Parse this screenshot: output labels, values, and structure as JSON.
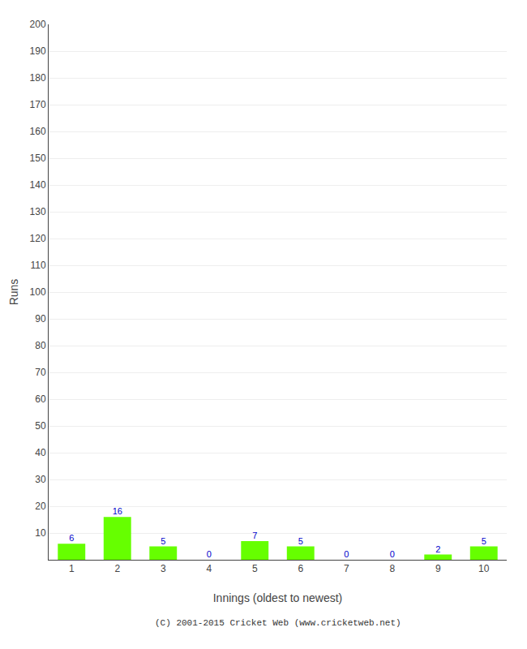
{
  "chart_data": {
    "type": "bar",
    "categories": [
      "1",
      "2",
      "3",
      "4",
      "5",
      "6",
      "7",
      "8",
      "9",
      "10"
    ],
    "values": [
      6,
      16,
      5,
      0,
      7,
      5,
      0,
      0,
      2,
      5
    ],
    "color": "#66ff00",
    "data_labels": true,
    "xlabel": "Innings (oldest to newest)",
    "ylabel": "Runs",
    "ylim": [
      0,
      200
    ],
    "yticks": [
      {
        "value": 0,
        "label": null
      },
      10,
      20,
      30,
      40,
      50,
      60,
      70,
      80,
      90,
      100,
      110,
      120,
      130,
      140,
      150,
      160,
      170,
      180,
      190,
      200
    ],
    "grid": true,
    "annotations": [
      "(C) 2001-2015 Cricket Web (www.cricketweb.net)"
    ]
  }
}
